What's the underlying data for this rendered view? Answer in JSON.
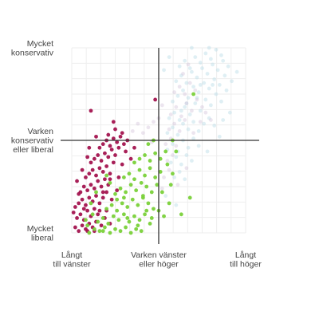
{
  "chart_data": {
    "type": "scatter",
    "title": "",
    "xlabel": "",
    "ylabel": "",
    "xlim": [
      0,
      10
    ],
    "ylim": [
      0,
      10
    ],
    "grid": true,
    "crosshair": {
      "x": 5,
      "y": 5
    },
    "x_ticks": [
      {
        "value": 0,
        "lines": [
          "Långt",
          "till vänster"
        ]
      },
      {
        "value": 5,
        "lines": [
          "Varken vänster",
          "eller höger"
        ]
      },
      {
        "value": 10,
        "lines": [
          "Långt",
          "till höger"
        ]
      }
    ],
    "y_ticks": [
      {
        "value": 10,
        "lines": [
          "Mycket",
          "konservativ"
        ]
      },
      {
        "value": 5,
        "lines": [
          "Varken",
          "konservativ",
          "eller liberal"
        ]
      },
      {
        "value": 0,
        "lines": [
          "Mycket",
          "liberal"
        ]
      }
    ],
    "series": [
      {
        "color": "#a3144f",
        "opacity": 0.95,
        "points": [
          [
            0.2,
            0.3
          ],
          [
            0.4,
            0.1
          ],
          [
            0.6,
            0.4
          ],
          [
            0.8,
            0.2
          ],
          [
            1.0,
            0.5
          ],
          [
            1.2,
            0.3
          ],
          [
            1.4,
            0.6
          ],
          [
            0.3,
            0.8
          ],
          [
            0.5,
            1.0
          ],
          [
            0.7,
            0.7
          ],
          [
            0.9,
            1.2
          ],
          [
            1.1,
            0.9
          ],
          [
            1.3,
            1.3
          ],
          [
            1.5,
            1.0
          ],
          [
            0.2,
            1.4
          ],
          [
            0.4,
            1.6
          ],
          [
            0.6,
            1.8
          ],
          [
            0.8,
            1.5
          ],
          [
            1.0,
            1.9
          ],
          [
            1.2,
            1.7
          ],
          [
            1.4,
            2.0
          ],
          [
            1.6,
            1.6
          ],
          [
            1.8,
            1.9
          ],
          [
            0.5,
            2.2
          ],
          [
            0.7,
            2.5
          ],
          [
            0.9,
            2.3
          ],
          [
            1.1,
            2.6
          ],
          [
            1.3,
            2.4
          ],
          [
            1.5,
            2.8
          ],
          [
            1.7,
            2.5
          ],
          [
            1.9,
            2.9
          ],
          [
            2.1,
            2.6
          ],
          [
            0.8,
            3.0
          ],
          [
            1.0,
            3.2
          ],
          [
            1.2,
            3.4
          ],
          [
            1.4,
            3.1
          ],
          [
            1.6,
            3.5
          ],
          [
            1.8,
            3.3
          ],
          [
            2.0,
            3.6
          ],
          [
            2.2,
            3.2
          ],
          [
            2.4,
            3.8
          ],
          [
            1.1,
            3.8
          ],
          [
            1.3,
            4.0
          ],
          [
            1.5,
            4.2
          ],
          [
            1.7,
            3.9
          ],
          [
            1.9,
            4.3
          ],
          [
            2.1,
            4.1
          ],
          [
            2.3,
            4.5
          ],
          [
            2.5,
            4.2
          ],
          [
            2.7,
            4.6
          ],
          [
            1.6,
            4.6
          ],
          [
            1.8,
            4.8
          ],
          [
            2.0,
            5.0
          ],
          [
            2.2,
            4.7
          ],
          [
            2.4,
            5.1
          ],
          [
            2.6,
            4.9
          ],
          [
            2.8,
            5.2
          ],
          [
            3.0,
            4.8
          ],
          [
            3.2,
            5.0
          ],
          [
            2.1,
            5.3
          ],
          [
            2.5,
            5.6
          ],
          [
            2.9,
            5.4
          ],
          [
            0.3,
            2.8
          ],
          [
            0.6,
            3.4
          ],
          [
            0.9,
            4.1
          ],
          [
            2.0,
            1.2
          ],
          [
            2.3,
            1.8
          ],
          [
            2.6,
            2.3
          ],
          [
            0.1,
            1.1
          ],
          [
            1.7,
            0.4
          ],
          [
            1.9,
            0.8
          ],
          [
            2.2,
            0.5
          ],
          [
            1.0,
            4.6
          ],
          [
            1.4,
            5.2
          ],
          [
            2.4,
            6.0
          ],
          [
            1.1,
            6.6
          ],
          [
            4.8,
            7.2
          ],
          [
            0.4,
            2.1
          ],
          [
            1.8,
            2.2
          ],
          [
            2.7,
            3.0
          ],
          [
            2.9,
            3.7
          ],
          [
            3.1,
            4.4
          ],
          [
            3.4,
            4.0
          ],
          [
            3.6,
            4.6
          ],
          [
            0.9,
            0.1
          ],
          [
            1.3,
            0.1
          ],
          [
            0.7,
            1.3
          ],
          [
            1.6,
            1.2
          ],
          [
            2.0,
            2.2
          ],
          [
            2.2,
            2.9
          ]
        ]
      },
      {
        "color": "#7ad13a",
        "opacity": 0.95,
        "points": [
          [
            1.0,
            0.0
          ],
          [
            1.3,
            0.2
          ],
          [
            1.6,
            0.1
          ],
          [
            1.9,
            0.3
          ],
          [
            2.2,
            0.0
          ],
          [
            2.5,
            0.2
          ],
          [
            2.8,
            0.1
          ],
          [
            3.1,
            0.3
          ],
          [
            3.4,
            0.0
          ],
          [
            3.7,
            0.2
          ],
          [
            4.0,
            0.1
          ],
          [
            1.5,
            0.6
          ],
          [
            1.8,
            0.8
          ],
          [
            2.1,
            0.5
          ],
          [
            2.4,
            0.9
          ],
          [
            2.7,
            0.7
          ],
          [
            3.0,
            1.0
          ],
          [
            3.3,
            0.6
          ],
          [
            3.6,
            0.9
          ],
          [
            3.9,
            0.7
          ],
          [
            4.2,
            1.0
          ],
          [
            4.5,
            0.5
          ],
          [
            2.0,
            1.3
          ],
          [
            2.3,
            1.5
          ],
          [
            2.6,
            1.2
          ],
          [
            2.9,
            1.6
          ],
          [
            3.2,
            1.4
          ],
          [
            3.5,
            1.8
          ],
          [
            3.8,
            1.5
          ],
          [
            4.1,
            1.9
          ],
          [
            4.4,
            1.6
          ],
          [
            4.7,
            1.3
          ],
          [
            2.5,
            2.1
          ],
          [
            2.8,
            2.4
          ],
          [
            3.1,
            2.2
          ],
          [
            3.4,
            2.6
          ],
          [
            3.7,
            2.3
          ],
          [
            4.0,
            2.7
          ],
          [
            4.3,
            2.5
          ],
          [
            4.6,
            2.2
          ],
          [
            3.0,
            3.0
          ],
          [
            3.3,
            3.2
          ],
          [
            3.6,
            2.9
          ],
          [
            3.9,
            3.4
          ],
          [
            4.2,
            3.1
          ],
          [
            4.5,
            3.5
          ],
          [
            4.8,
            3.0
          ],
          [
            5.1,
            3.3
          ],
          [
            3.6,
            3.8
          ],
          [
            3.9,
            4.0
          ],
          [
            4.2,
            4.2
          ],
          [
            4.5,
            3.9
          ],
          [
            4.8,
            4.3
          ],
          [
            5.1,
            4.0
          ],
          [
            5.4,
            4.4
          ],
          [
            4.4,
            4.8
          ],
          [
            4.7,
            5.0
          ],
          [
            1.2,
            1.0
          ],
          [
            0.8,
            0.7
          ],
          [
            1.1,
            1.6
          ],
          [
            5.0,
            1.2
          ],
          [
            5.3,
            0.9
          ],
          [
            5.6,
            1.6
          ],
          [
            5.2,
            2.2
          ],
          [
            4.9,
            2.6
          ],
          [
            5.5,
            3.7
          ],
          [
            5.8,
            3.2
          ],
          [
            6.0,
            4.4
          ],
          [
            5.7,
            2.6
          ],
          [
            6.3,
            1.0
          ],
          [
            3.2,
            0.8
          ],
          [
            2.6,
            1.8
          ],
          [
            1.4,
            2.2
          ],
          [
            2.2,
            2.7
          ],
          [
            3.8,
            0.4
          ],
          [
            4.6,
            0.8
          ],
          [
            6.8,
            1.9
          ],
          [
            1.8,
            0.1
          ],
          [
            3.0,
            1.9
          ],
          [
            4.3,
            1.2
          ],
          [
            5.8,
            5.0
          ],
          [
            7.0,
            7.5
          ],
          [
            0.9,
            0.4
          ],
          [
            2.0,
            3.1
          ],
          [
            4.1,
            2.0
          ]
        ]
      },
      {
        "color": "#b9dbe6",
        "opacity": 0.45,
        "points": [
          [
            5.6,
            6.2
          ],
          [
            5.9,
            6.5
          ],
          [
            6.2,
            6.1
          ],
          [
            6.5,
            6.8
          ],
          [
            6.8,
            6.4
          ],
          [
            7.1,
            7.0
          ],
          [
            7.4,
            6.6
          ],
          [
            7.7,
            7.2
          ],
          [
            8.0,
            6.9
          ],
          [
            8.3,
            7.5
          ],
          [
            8.6,
            7.1
          ],
          [
            5.8,
            7.1
          ],
          [
            6.1,
            7.4
          ],
          [
            6.4,
            7.7
          ],
          [
            6.7,
            7.3
          ],
          [
            7.0,
            7.9
          ],
          [
            7.3,
            7.6
          ],
          [
            7.6,
            8.1
          ],
          [
            7.9,
            7.8
          ],
          [
            8.2,
            8.3
          ],
          [
            8.5,
            8.0
          ],
          [
            8.8,
            8.5
          ],
          [
            6.0,
            8.2
          ],
          [
            6.3,
            8.5
          ],
          [
            6.6,
            8.1
          ],
          [
            6.9,
            8.7
          ],
          [
            7.2,
            8.4
          ],
          [
            7.5,
            8.9
          ],
          [
            7.8,
            8.6
          ],
          [
            8.1,
            9.1
          ],
          [
            8.4,
            8.8
          ],
          [
            8.7,
            9.3
          ],
          [
            9.0,
            9.0
          ],
          [
            6.2,
            9.0
          ],
          [
            6.5,
            9.3
          ],
          [
            6.8,
            8.9
          ],
          [
            7.1,
            9.5
          ],
          [
            7.4,
            9.2
          ],
          [
            7.7,
            9.7
          ],
          [
            8.0,
            9.4
          ],
          [
            8.3,
            9.9
          ],
          [
            8.6,
            9.6
          ],
          [
            5.5,
            5.4
          ],
          [
            5.8,
            5.7
          ],
          [
            6.1,
            5.3
          ],
          [
            6.4,
            5.9
          ],
          [
            6.7,
            5.6
          ],
          [
            7.0,
            6.0
          ],
          [
            7.3,
            5.5
          ],
          [
            7.6,
            5.9
          ],
          [
            7.9,
            6.2
          ],
          [
            8.2,
            5.8
          ],
          [
            5.5,
            4.5
          ],
          [
            5.8,
            4.8
          ],
          [
            6.1,
            4.4
          ],
          [
            6.4,
            5.0
          ],
          [
            6.7,
            4.6
          ],
          [
            7.0,
            5.1
          ],
          [
            7.3,
            4.7
          ],
          [
            5.7,
            3.8
          ],
          [
            6.0,
            4.1
          ],
          [
            6.3,
            3.7
          ],
          [
            6.6,
            4.2
          ],
          [
            6.9,
            3.9
          ],
          [
            5.9,
            3.0
          ],
          [
            6.2,
            3.3
          ],
          [
            6.5,
            2.9
          ],
          [
            5.4,
            2.0
          ],
          [
            6.0,
            1.5
          ],
          [
            8.9,
            7.7
          ],
          [
            9.2,
            8.2
          ],
          [
            9.5,
            8.7
          ],
          [
            9.1,
            6.5
          ],
          [
            8.7,
            6.1
          ],
          [
            5.3,
            8.8
          ],
          [
            5.6,
            9.5
          ],
          [
            7.9,
            10.0
          ],
          [
            6.9,
            10.0
          ],
          [
            8.5,
            5.2
          ],
          [
            7.8,
            4.4
          ],
          [
            6.3,
            6.6
          ],
          [
            7.4,
            8.0
          ],
          [
            6.6,
            7.0
          ],
          [
            7.2,
            7.3
          ],
          [
            8.1,
            8.0
          ]
        ]
      },
      {
        "color": "#cfbfd6",
        "opacity": 0.4,
        "points": [
          [
            5.7,
            6.4
          ],
          [
            6.0,
            6.8
          ],
          [
            6.3,
            6.3
          ],
          [
            6.6,
            7.0
          ],
          [
            6.9,
            6.6
          ],
          [
            7.2,
            7.2
          ],
          [
            7.5,
            6.8
          ],
          [
            5.9,
            7.6
          ],
          [
            6.2,
            7.9
          ],
          [
            6.5,
            7.5
          ],
          [
            6.8,
            8.1
          ],
          [
            7.1,
            7.7
          ],
          [
            5.6,
            5.6
          ],
          [
            5.9,
            5.9
          ],
          [
            6.2,
            5.5
          ],
          [
            6.5,
            6.1
          ],
          [
            5.4,
            4.8
          ],
          [
            5.7,
            5.1
          ],
          [
            6.0,
            4.7
          ],
          [
            5.5,
            3.9
          ],
          [
            5.8,
            4.2
          ],
          [
            5.3,
            3.0
          ],
          [
            5.6,
            3.4
          ],
          [
            5.2,
            2.4
          ],
          [
            4.7,
            6.0
          ],
          [
            4.4,
            5.7
          ],
          [
            4.1,
            5.4
          ],
          [
            3.8,
            5.9
          ],
          [
            3.5,
            5.5
          ],
          [
            7.4,
            6.0
          ],
          [
            7.7,
            6.5
          ],
          [
            8.0,
            6.1
          ],
          [
            6.4,
            8.6
          ],
          [
            6.7,
            9.1
          ],
          [
            5.2,
            6.9
          ],
          [
            5.0,
            6.2
          ],
          [
            4.6,
            4.9
          ],
          [
            7.0,
            5.4
          ],
          [
            6.1,
            2.6
          ],
          [
            6.6,
            3.5
          ]
        ]
      }
    ]
  }
}
